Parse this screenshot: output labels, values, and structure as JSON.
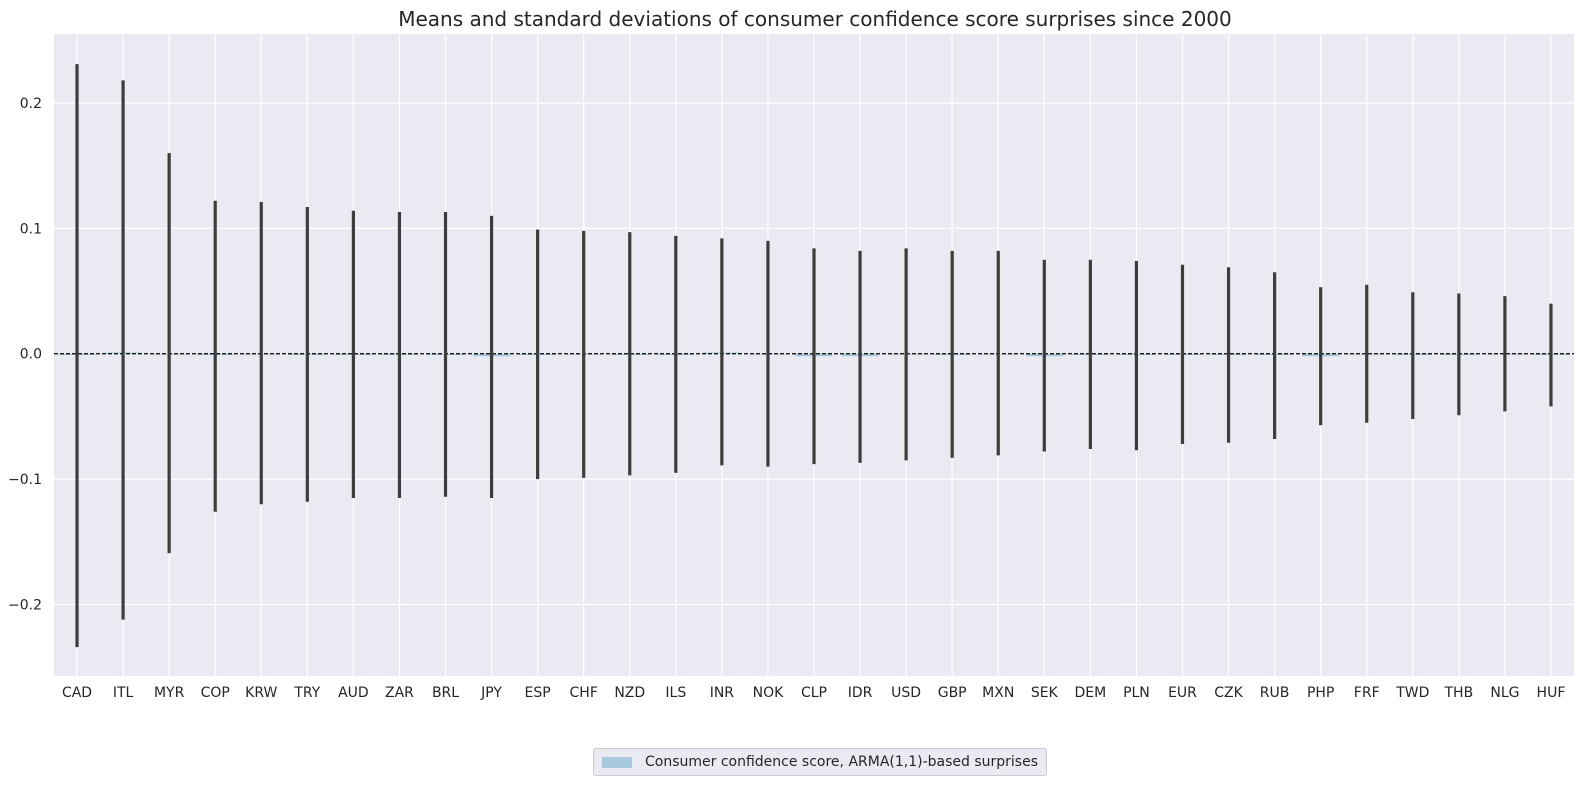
{
  "chart_data": {
    "type": "bar",
    "title": "Means and standard deviations of consumer confidence score surprises since 2000",
    "xlabel": "",
    "ylabel": "",
    "ylim": [
      -0.257,
      0.255
    ],
    "yticks": [
      -0.2,
      -0.1,
      0.0,
      0.1,
      0.2
    ],
    "ytick_labels": [
      "−0.2",
      "−0.1",
      "0.0",
      "0.1",
      "0.2"
    ],
    "grid": true,
    "legend_position": "bottom-center",
    "reference_line": 0.0,
    "categories": [
      "CAD",
      "ITL",
      "MYR",
      "COP",
      "KRW",
      "TRY",
      "AUD",
      "ZAR",
      "BRL",
      "JPY",
      "ESP",
      "CHF",
      "NZD",
      "ILS",
      "INR",
      "NOK",
      "CLP",
      "IDR",
      "USD",
      "GBP",
      "MXN",
      "SEK",
      "DEM",
      "PLN",
      "EUR",
      "CZK",
      "RUB",
      "PHP",
      "FRF",
      "TWD",
      "THB",
      "NLG",
      "HUF"
    ],
    "series": [
      {
        "name": "Consumer confidence score, ARMA(1,1)-based surprises",
        "color": "#a9cadc",
        "values": [
          -0.001,
          0.001,
          0.0,
          -0.001,
          0.0,
          -0.001,
          -0.001,
          -0.001,
          -0.001,
          -0.002,
          -0.001,
          0.0,
          -0.001,
          -0.001,
          0.001,
          0.0,
          -0.002,
          -0.002,
          0.0,
          -0.001,
          0.0,
          -0.002,
          -0.001,
          -0.001,
          -0.001,
          -0.001,
          -0.001,
          -0.002,
          0.0,
          -0.001,
          -0.001,
          0.0,
          -0.001
        ],
        "error_low": [
          -0.234,
          -0.212,
          -0.159,
          -0.126,
          -0.12,
          -0.118,
          -0.115,
          -0.115,
          -0.114,
          -0.115,
          -0.1,
          -0.099,
          -0.097,
          -0.095,
          -0.089,
          -0.09,
          -0.088,
          -0.087,
          -0.085,
          -0.083,
          -0.081,
          -0.078,
          -0.076,
          -0.077,
          -0.072,
          -0.071,
          -0.068,
          -0.057,
          -0.055,
          -0.052,
          -0.049,
          -0.046,
          -0.042
        ],
        "error_high": [
          0.231,
          0.218,
          0.16,
          0.122,
          0.121,
          0.117,
          0.114,
          0.113,
          0.113,
          0.11,
          0.099,
          0.098,
          0.097,
          0.094,
          0.092,
          0.09,
          0.084,
          0.082,
          0.084,
          0.082,
          0.082,
          0.075,
          0.075,
          0.074,
          0.071,
          0.069,
          0.065,
          0.053,
          0.055,
          0.049,
          0.048,
          0.046,
          0.04
        ]
      }
    ]
  },
  "legend": {
    "label": "Consumer confidence score, ARMA(1,1)-based surprises",
    "swatch_color": "#a9cadc"
  },
  "colors": {
    "plot_background": "#eaeaf2",
    "grid": "#ffffff",
    "error_bar": "#3d3d3d",
    "zero_line": "#000000"
  }
}
